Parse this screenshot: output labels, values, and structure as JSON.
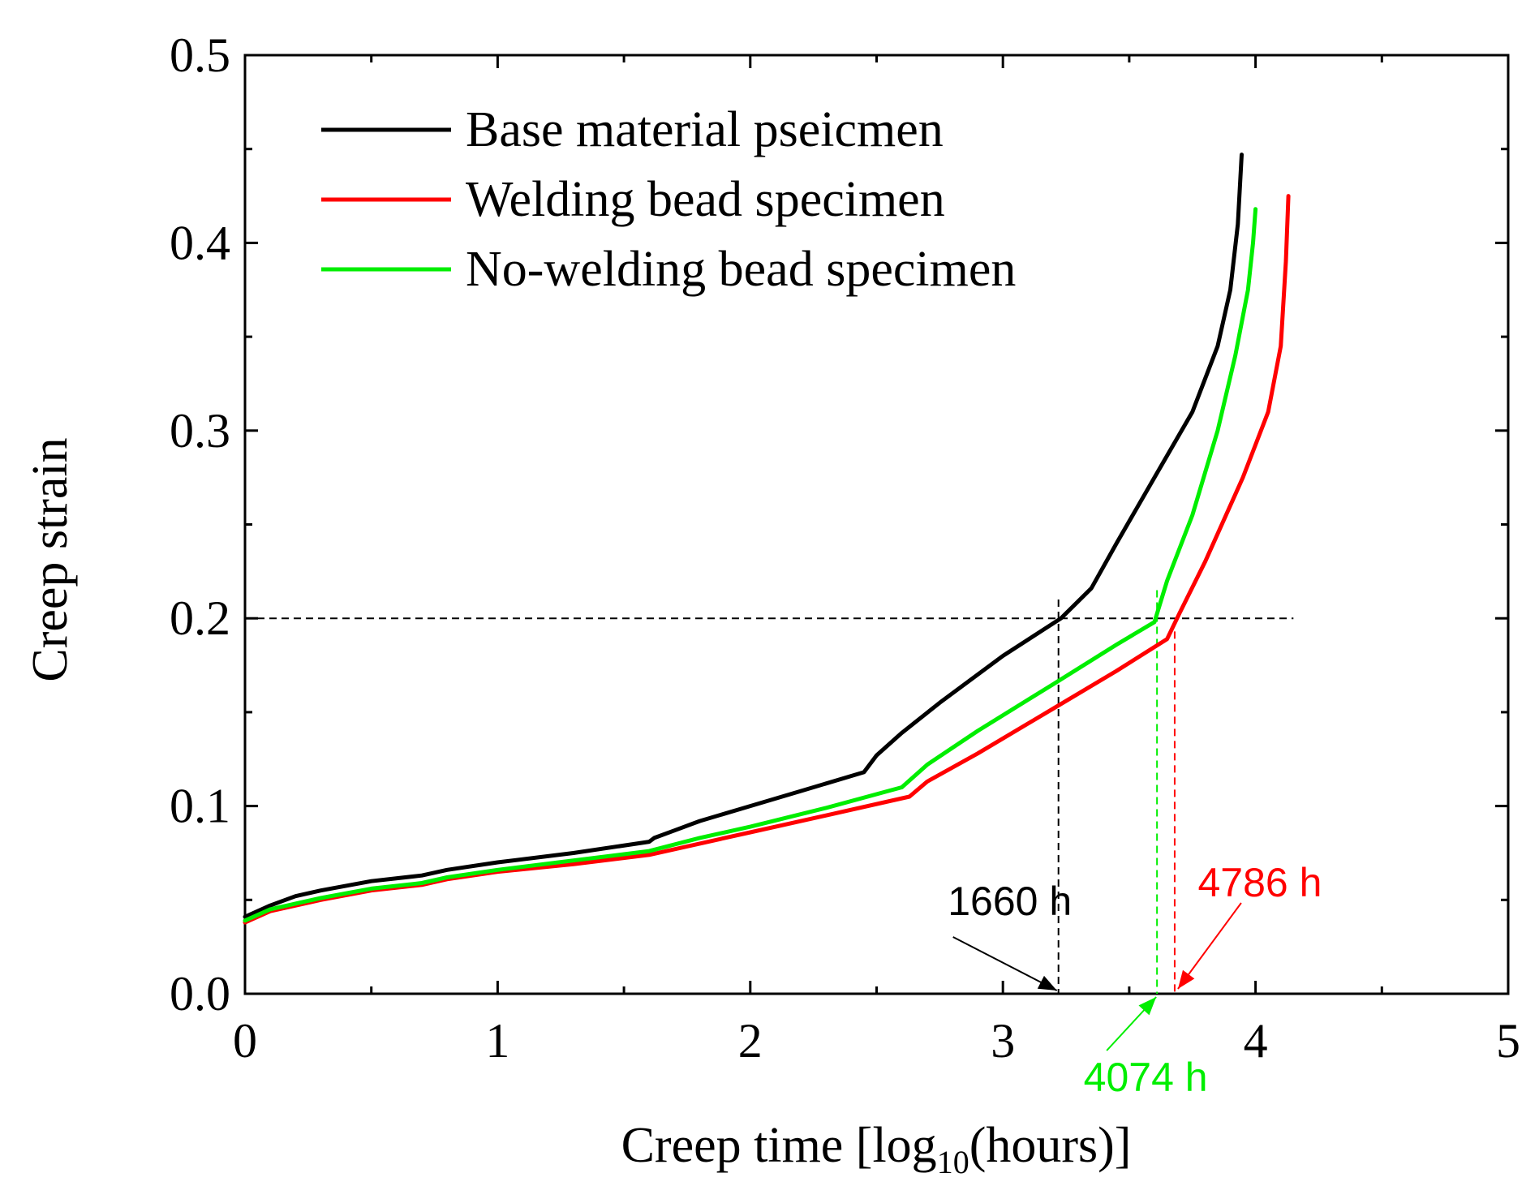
{
  "chart_data": {
    "type": "line",
    "xlabel": {
      "prefix": "Creep time [log",
      "sub": "10",
      "suffix": "(hours)]"
    },
    "ylabel": "Creep strain",
    "xlim": [
      0,
      5
    ],
    "ylim": [
      0,
      0.5
    ],
    "x_ticks": [
      0,
      1,
      2,
      3,
      4,
      5
    ],
    "x_tick_labels": [
      "0",
      "1",
      "2",
      "3",
      "4",
      "5"
    ],
    "y_ticks": [
      0.0,
      0.1,
      0.2,
      0.3,
      0.4,
      0.5
    ],
    "y_tick_labels": [
      "0.0",
      "0.1",
      "0.2",
      "0.3",
      "0.4",
      "0.5"
    ],
    "grid": false,
    "legend_position": "top-left",
    "series": [
      {
        "name": "Base material pseicmen",
        "color": "#000000",
        "x": [
          0,
          0.1,
          0.2,
          0.3,
          0.5,
          0.7,
          0.8,
          1.0,
          1.3,
          1.6,
          1.62,
          1.7,
          1.8,
          2.0,
          2.2,
          2.45,
          2.5,
          2.6,
          2.75,
          3.0,
          3.23,
          3.35,
          3.45,
          3.6,
          3.75,
          3.85,
          3.9,
          3.93,
          3.945
        ],
        "y": [
          0.041,
          0.047,
          0.052,
          0.055,
          0.06,
          0.063,
          0.066,
          0.07,
          0.075,
          0.081,
          0.083,
          0.087,
          0.092,
          0.1,
          0.108,
          0.118,
          0.127,
          0.139,
          0.155,
          0.18,
          0.2,
          0.216,
          0.24,
          0.275,
          0.31,
          0.345,
          0.375,
          0.41,
          0.447
        ]
      },
      {
        "name": "Welding bead specimen",
        "color": "#ff0000",
        "x": [
          0,
          0.1,
          0.3,
          0.5,
          0.7,
          0.8,
          1.0,
          1.3,
          1.6,
          1.8,
          2.0,
          2.3,
          2.63,
          2.7,
          2.9,
          3.2,
          3.45,
          3.65,
          3.7,
          3.8,
          3.95,
          4.05,
          4.1,
          4.12,
          4.13
        ],
        "y": [
          0.038,
          0.044,
          0.05,
          0.055,
          0.058,
          0.061,
          0.065,
          0.069,
          0.074,
          0.08,
          0.086,
          0.095,
          0.105,
          0.113,
          0.128,
          0.152,
          0.172,
          0.189,
          0.203,
          0.23,
          0.275,
          0.31,
          0.345,
          0.39,
          0.425
        ]
      },
      {
        "name": "No-welding bead specimen",
        "color": "#00ee00",
        "x": [
          0,
          0.1,
          0.3,
          0.5,
          0.7,
          0.8,
          1.0,
          1.3,
          1.6,
          1.8,
          2.0,
          2.3,
          2.6,
          2.7,
          2.9,
          3.2,
          3.45,
          3.6,
          3.65,
          3.75,
          3.85,
          3.92,
          3.97,
          3.99,
          4.0
        ],
        "y": [
          0.039,
          0.045,
          0.051,
          0.056,
          0.059,
          0.062,
          0.066,
          0.071,
          0.076,
          0.083,
          0.089,
          0.099,
          0.11,
          0.122,
          0.14,
          0.165,
          0.186,
          0.198,
          0.22,
          0.255,
          0.3,
          0.34,
          0.375,
          0.4,
          0.418
        ]
      }
    ],
    "reference_lines": [
      {
        "type": "horizontal",
        "y": 0.2,
        "color": "#000000",
        "from_x": 0,
        "to_x": 4.15
      }
    ],
    "annotations": [
      {
        "text": "1660 h",
        "color": "#000000",
        "x": 3.22,
        "y_top": 0.21
      },
      {
        "text": "4074 h",
        "color": "#00ee00",
        "x": 3.61,
        "y_top": 0.215
      },
      {
        "text": "4786 h",
        "color": "#ff0000",
        "x": 3.68,
        "y_top": 0.193
      }
    ]
  }
}
